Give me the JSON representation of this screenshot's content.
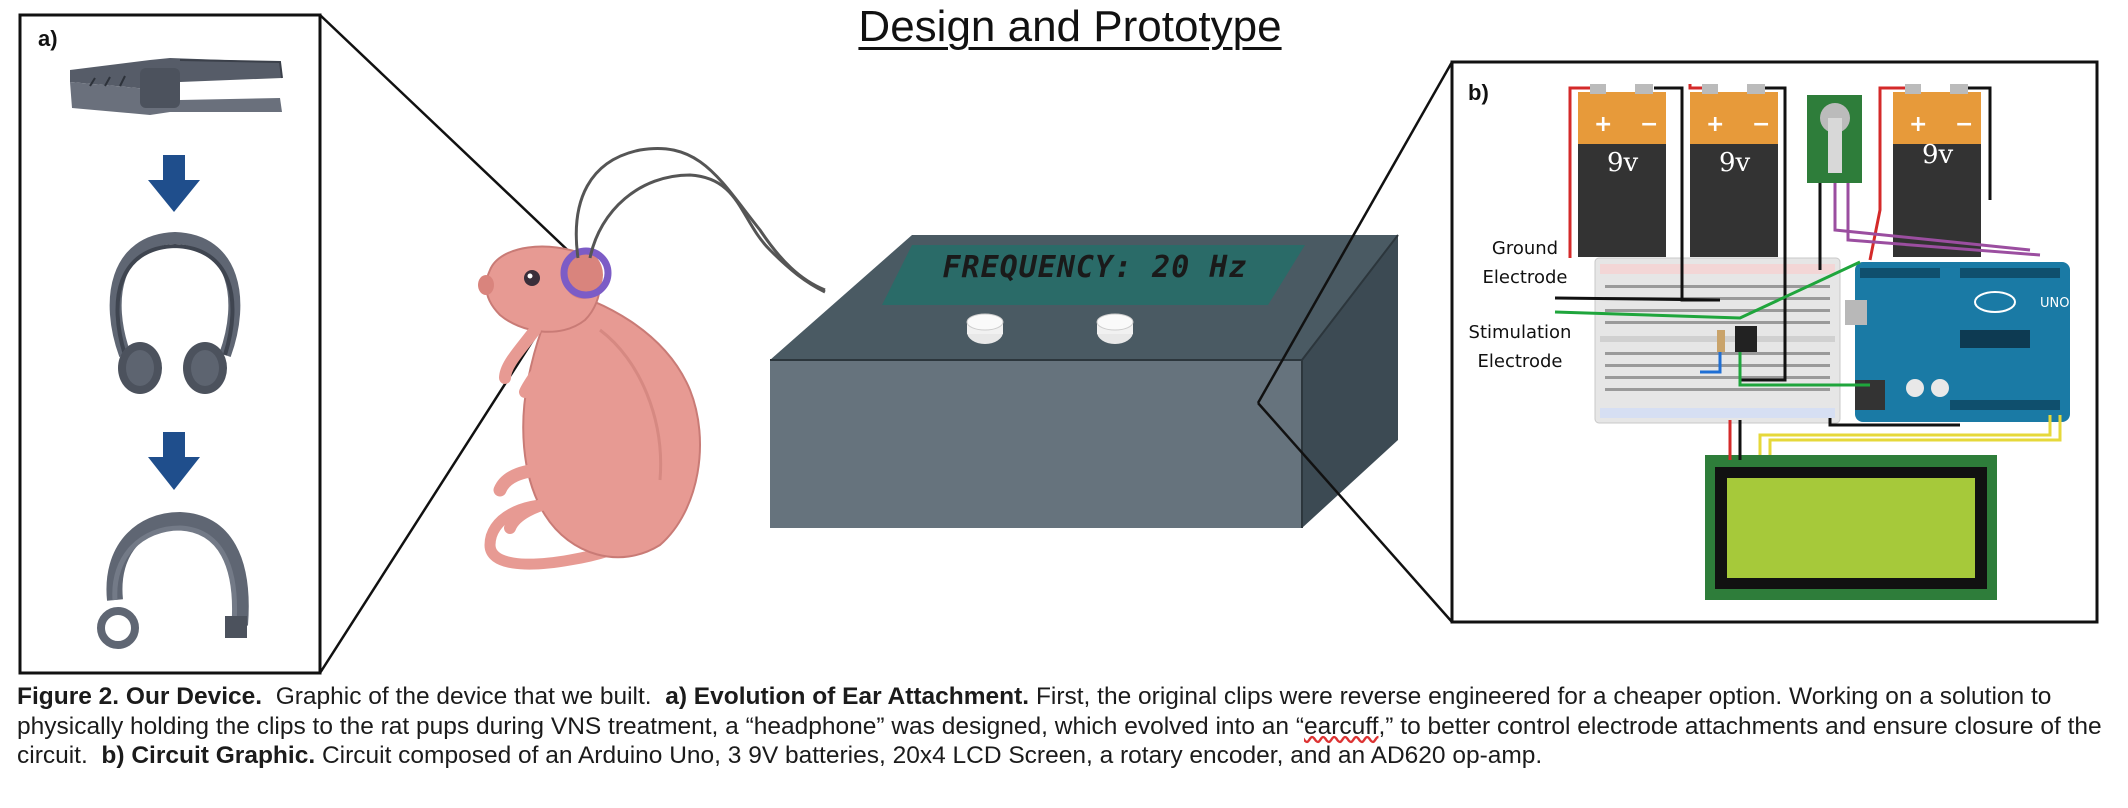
{
  "title": "Design and Prototype",
  "panel_a": {
    "label": "a)"
  },
  "panel_b": {
    "label": "b)",
    "ground_electrode": [
      "Ground",
      "Electrode"
    ],
    "stimulation_electrode": [
      "Stimulation",
      "Electrode"
    ],
    "battery_label": "9v",
    "battery_plus": "+",
    "battery_minus": "−"
  },
  "device": {
    "display_text": "FREQUENCY: 20 Hz"
  },
  "caption": {
    "fig_label": "Figure 2. Our Device.",
    "fig_text": "Graphic of the device that we built.",
    "a_label": "a) Evolution of Ear Attachment.",
    "a_text_1": "First, the original clips were reverse engineered for a cheaper option. Working on a solution to physically holding the clips to the rat pups during VNS treatment, a “headphone” was designed, which evolved into an “",
    "a_text_word": "earcuff",
    "a_text_2": ",” to better control electrode attachments and ensure closure of the circuit.",
    "b_label": "b) Circuit Graphic.",
    "b_text": "Circuit composed of an Arduino Uno, 3 9V batteries, 20x4 LCD Screen, a rotary encoder, and an AD620 op-amp."
  },
  "colors": {
    "device_top": "#4a5a63",
    "device_front": "#66737d",
    "device_side": "#3c4a53",
    "lcd_teal": "#2a6b68",
    "arrow_blue": "#1f4e8c",
    "rat_pink": "#e79a93",
    "arduino_blue": "#1a7aa5",
    "lcd_green": "#a6c93a"
  }
}
